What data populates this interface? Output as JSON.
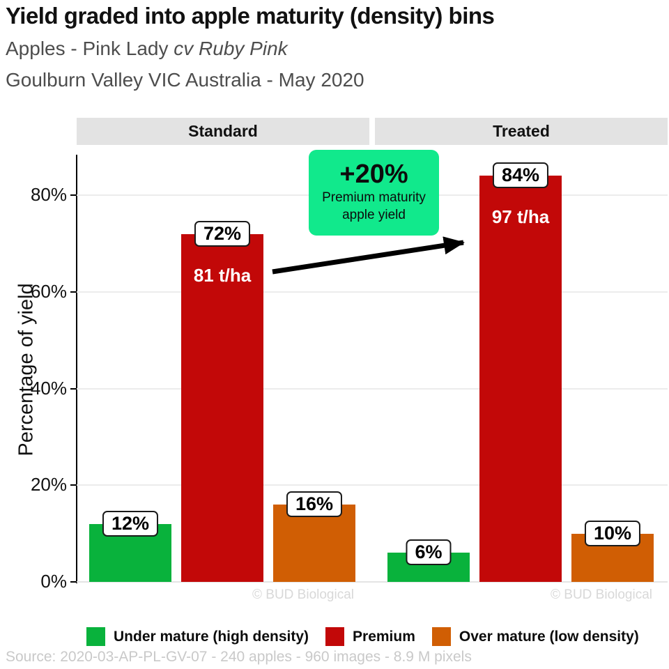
{
  "header": {
    "title": "Yield graded into apple maturity (density) bins",
    "subtitle_plain": "Apples - Pink Lady ",
    "subtitle_italic": "cv Ruby Pink",
    "subtitle_location": "Goulburn Valley VIC Australia - May 2020"
  },
  "annotation": {
    "delta": "+20%",
    "line1": "Premium maturity",
    "line2": "apple yield",
    "bg_color": "#11e98c"
  },
  "watermark": "© BUD Biological",
  "source_line": "Source: 2020-03-AP-PL-GV-07 - 240 apples - 960 images - 8.9 M pixels",
  "chart_data": {
    "type": "bar",
    "title": "Yield graded into apple maturity (density) bins",
    "subtitle": "Apples - Pink Lady cv Ruby Pink — Goulburn Valley VIC Australia - May 2020",
    "facets": [
      "Standard",
      "Treated"
    ],
    "categories": [
      "Under mature (high density)",
      "Premium",
      "Over mature (low density)"
    ],
    "series_colors": [
      "#09b23c",
      "#c20808",
      "#d05e04"
    ],
    "groups": [
      {
        "facet": "Standard",
        "values": [
          12,
          72,
          16
        ],
        "value_labels": [
          "12%",
          "72%",
          "16%"
        ],
        "premium_yield": "81 t/ha"
      },
      {
        "facet": "Treated",
        "values": [
          6,
          84,
          10
        ],
        "value_labels": [
          "6%",
          "84%",
          "10%"
        ],
        "premium_yield": "97 t/ha"
      }
    ],
    "annotation": "+20% Premium maturity apple yield (Standard 72% -> Treated 84%)",
    "xlabel": "",
    "ylabel": "Percentage of yield",
    "yticks": [
      0,
      20,
      40,
      60,
      80
    ],
    "ytick_labels": [
      "0%",
      "20%",
      "40%",
      "60%",
      "80%"
    ],
    "ylim": [
      0,
      88
    ],
    "grid": "horizontal",
    "legend_position": "bottom",
    "legend": [
      {
        "label": "Under mature (high density)",
        "color": "#09b23c"
      },
      {
        "label": "Premium",
        "color": "#c20808"
      },
      {
        "label": "Over mature (low density)",
        "color": "#d05e04"
      }
    ]
  }
}
